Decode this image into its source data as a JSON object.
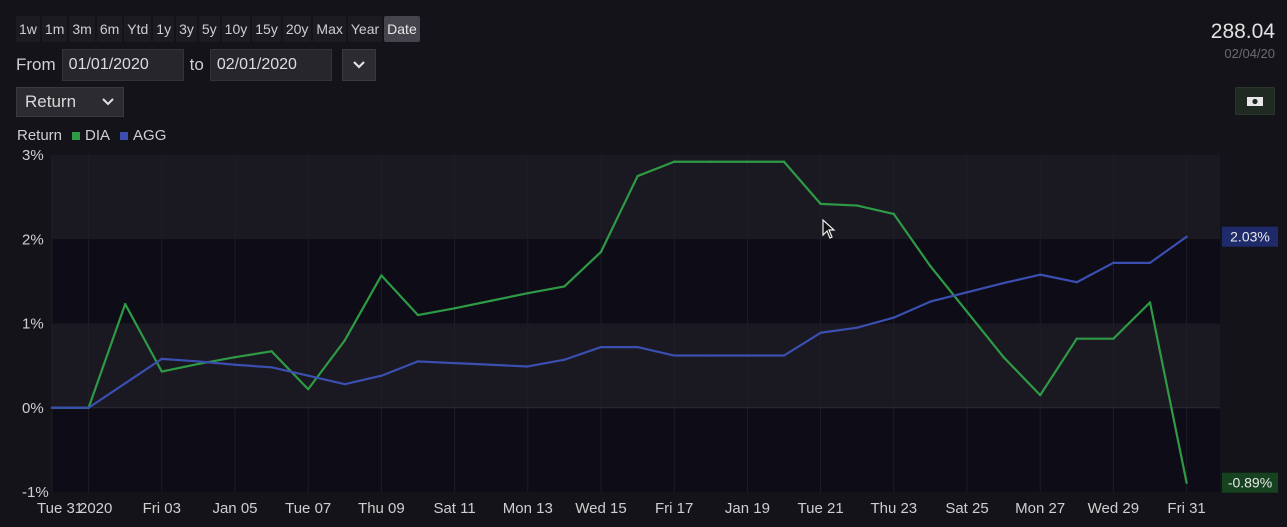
{
  "range_buttons": [
    {
      "label": "1w",
      "active": false
    },
    {
      "label": "1m",
      "active": false
    },
    {
      "label": "3m",
      "active": false
    },
    {
      "label": "6m",
      "active": false
    },
    {
      "label": "Ytd",
      "active": false
    },
    {
      "label": "1y",
      "active": false
    },
    {
      "label": "3y",
      "active": false
    },
    {
      "label": "5y",
      "active": false
    },
    {
      "label": "10y",
      "active": false
    },
    {
      "label": "15y",
      "active": false
    },
    {
      "label": "20y",
      "active": false
    },
    {
      "label": "Max",
      "active": false
    },
    {
      "label": "Year",
      "active": false
    },
    {
      "label": "Date",
      "active": true
    }
  ],
  "from_label": "From",
  "from_value": "01/01/2020",
  "to_label": "to",
  "to_value": "02/01/2020",
  "metric_select": "Return",
  "legend_title": "Return",
  "price": "288.04",
  "price_date": "02/04/20",
  "colors": {
    "DIA": "#2e9a45",
    "AGG": "#3a4fb0",
    "background": "#141319"
  },
  "chart_data": {
    "type": "line",
    "ylabel": "Return",
    "ylim": [
      -1,
      3
    ],
    "yticks": [
      "3%",
      "2%",
      "1%",
      "0%",
      "-1%"
    ],
    "ytick_values": [
      3,
      2,
      1,
      0,
      -1
    ],
    "x_labels": [
      "Tue 31",
      "2020",
      "Fri 03",
      "Jan 05",
      "Tue 07",
      "Thu 09",
      "Sat 11",
      "Mon 13",
      "Wed 15",
      "Fri 17",
      "Jan 19",
      "Tue 21",
      "Thu 23",
      "Sat 25",
      "Mon 27",
      "Wed 29",
      "Fri 31"
    ],
    "x_label_days": [
      -1,
      0,
      2,
      4,
      6,
      8,
      10,
      12,
      14,
      16,
      18,
      20,
      22,
      24,
      26,
      28,
      30
    ],
    "x_days": [
      -1,
      0,
      1,
      2,
      3,
      4,
      5,
      6,
      7,
      8,
      9,
      10,
      11,
      12,
      13,
      14,
      15,
      16,
      17,
      18,
      19,
      20,
      21,
      22,
      23,
      24,
      25,
      26,
      27,
      28,
      29,
      30
    ],
    "series": [
      {
        "name": "DIA",
        "color": "#2e9a45",
        "values": [
          0,
          0,
          1.23,
          0.43,
          0.52,
          0.6,
          0.67,
          0.22,
          0.8,
          1.57,
          1.1,
          1.18,
          1.27,
          1.36,
          1.44,
          1.85,
          2.75,
          2.92,
          2.92,
          2.92,
          2.92,
          2.42,
          2.4,
          2.3,
          1.68,
          1.14,
          0.6,
          0.15,
          0.82,
          0.82,
          1.25,
          -0.89
        ]
      },
      {
        "name": "AGG",
        "color": "#3a4fb0",
        "values": [
          0,
          0,
          0.29,
          0.58,
          0.55,
          0.51,
          0.48,
          0.38,
          0.28,
          0.38,
          0.55,
          0.53,
          0.51,
          0.49,
          0.57,
          0.72,
          0.72,
          0.62,
          0.62,
          0.62,
          0.62,
          0.89,
          0.95,
          1.07,
          1.26,
          1.37,
          1.48,
          1.58,
          1.49,
          1.72,
          1.72,
          2.03
        ]
      }
    ],
    "end_tags": [
      {
        "series": "AGG",
        "label": "2.03%",
        "value": 2.03
      },
      {
        "series": "DIA",
        "label": "-0.89%",
        "value": -0.89
      }
    ],
    "grid": true
  }
}
